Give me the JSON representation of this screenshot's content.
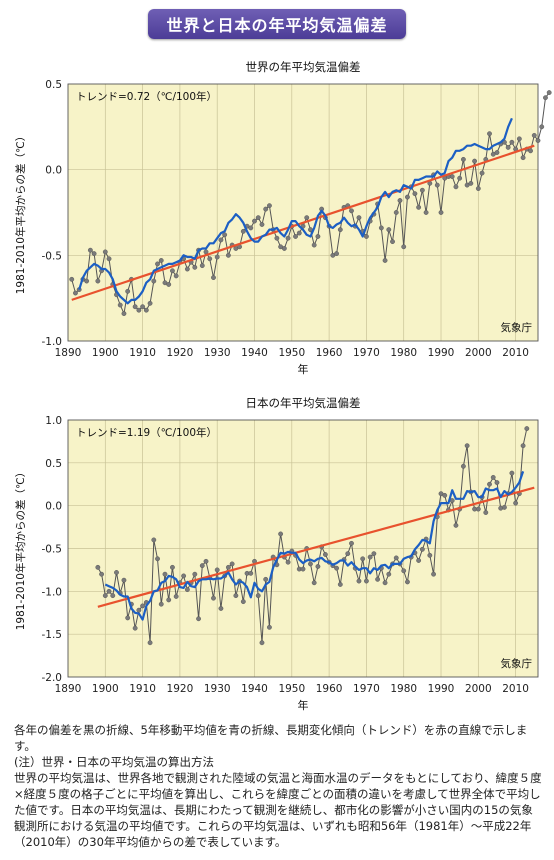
{
  "header": {
    "title": "世界と日本の年平均気温偏差"
  },
  "colors": {
    "plot_bg": "#f7f3c8",
    "raw": "#555555",
    "moving_avg": "#1c5fc4",
    "trend": "#e8522e"
  },
  "chart_data": [
    {
      "type": "line",
      "title": "世界の年平均気温偏差",
      "trend_label": "トレンド=0.72（℃/100年）",
      "source": "気象庁",
      "ylabel": "1981-2010年平均からの差（℃）",
      "xlabel": "年",
      "xlim": [
        1890,
        2016
      ],
      "ylim": [
        -1.0,
        0.5
      ],
      "xticks": [
        1890,
        1900,
        1910,
        1920,
        1930,
        1940,
        1950,
        1960,
        1970,
        1980,
        1990,
        2000,
        2010
      ],
      "xtick_labels": [
        "1890",
        "1900",
        "1910",
        "1920",
        "1930",
        "1940",
        "1950",
        "1960",
        "1970",
        "1980",
        "1990",
        "2000",
        "2010"
      ],
      "yticks": [
        -1.0,
        -0.5,
        0.0,
        0.5
      ],
      "ytick_labels": [
        "-1.0",
        "-0.5",
        "0.0",
        "0.5"
      ],
      "grid": true,
      "series": [
        {
          "key": "raw",
          "start_year": 1891,
          "values": [
            -0.64,
            -0.72,
            -0.7,
            -0.64,
            -0.65,
            -0.47,
            -0.49,
            -0.65,
            -0.59,
            -0.48,
            -0.52,
            -0.67,
            -0.73,
            -0.79,
            -0.84,
            -0.71,
            -0.64,
            -0.8,
            -0.82,
            -0.8,
            -0.82,
            -0.78,
            -0.65,
            -0.55,
            -0.53,
            -0.66,
            -0.67,
            -0.59,
            -0.62,
            -0.54,
            -0.52,
            -0.58,
            -0.54,
            -0.57,
            -0.47,
            -0.56,
            -0.48,
            -0.52,
            -0.63,
            -0.51,
            -0.41,
            -0.38,
            -0.5,
            -0.44,
            -0.46,
            -0.45,
            -0.36,
            -0.33,
            -0.34,
            -0.3,
            -0.28,
            -0.32,
            -0.23,
            -0.21,
            -0.35,
            -0.4,
            -0.45,
            -0.46,
            -0.4,
            -0.33,
            -0.39,
            -0.37,
            -0.33,
            -0.28,
            -0.35,
            -0.44,
            -0.39,
            -0.23,
            -0.28,
            -0.33,
            -0.5,
            -0.49,
            -0.35,
            -0.22,
            -0.21,
            -0.24,
            -0.33,
            -0.28,
            -0.36,
            -0.39,
            -0.3,
            -0.26,
            -0.2,
            -0.34,
            -0.53,
            -0.35,
            -0.42,
            -0.25,
            -0.18,
            -0.45,
            -0.16,
            -0.1,
            -0.14,
            -0.22,
            -0.12,
            -0.25,
            -0.08,
            -0.03,
            -0.09,
            -0.25,
            -0.05,
            -0.04,
            -0.04,
            -0.1,
            -0.05,
            0.06,
            -0.09,
            -0.08,
            0.05,
            -0.11,
            -0.02,
            0.06,
            0.21,
            0.09,
            0.1,
            0.15,
            0.16,
            0.13,
            0.16,
            0.12,
            0.18,
            0.07,
            0.12,
            0.11,
            0.2,
            0.17,
            0.25,
            0.42,
            0.45
          ]
        },
        {
          "key": "moving_avg",
          "start_year": 1893,
          "values": [
            -0.7,
            -0.63,
            -0.59,
            -0.57,
            -0.55,
            -0.56,
            -0.58,
            -0.58,
            -0.6,
            -0.64,
            -0.71,
            -0.74,
            -0.76,
            -0.78,
            -0.76,
            -0.76,
            -0.74,
            -0.71,
            -0.66,
            -0.64,
            -0.59,
            -0.58,
            -0.57,
            -0.56,
            -0.55,
            -0.55,
            -0.54,
            -0.53,
            -0.5,
            -0.51,
            -0.51,
            -0.52,
            -0.47,
            -0.46,
            -0.46,
            -0.43,
            -0.43,
            -0.4,
            -0.37,
            -0.36,
            -0.31,
            -0.29,
            -0.26,
            -0.28,
            -0.31,
            -0.36,
            -0.4,
            -0.42,
            -0.42,
            -0.39,
            -0.38,
            -0.35,
            -0.35,
            -0.34,
            -0.37,
            -0.39,
            -0.35,
            -0.3,
            -0.3,
            -0.33,
            -0.35,
            -0.38,
            -0.39,
            -0.34,
            -0.27,
            -0.24,
            -0.27,
            -0.33,
            -0.34,
            -0.32,
            -0.31,
            -0.28,
            -0.31,
            -0.33,
            -0.32,
            -0.35,
            -0.39,
            -0.33,
            -0.28,
            -0.25,
            -0.22,
            -0.16,
            -0.13,
            -0.16,
            -0.13,
            -0.12,
            -0.13,
            -0.09,
            -0.1,
            -0.11,
            -0.06,
            -0.06,
            -0.05,
            -0.04,
            -0.04,
            -0.04,
            -0.01,
            -0.03,
            -0.02,
            0.05,
            0.07,
            0.11,
            0.11,
            0.12,
            0.14,
            0.14,
            0.15,
            0.14,
            0.13,
            0.12,
            0.12,
            0.14,
            0.15,
            0.16,
            0.18,
            0.25,
            0.3
          ]
        },
        {
          "key": "trend",
          "start_year": 1891,
          "values": [
            -0.76
          ],
          "end_year": 2015,
          "end_value": 0.14
        }
      ]
    },
    {
      "type": "line",
      "title": "日本の年平均気温偏差",
      "trend_label": "トレンド=1.19（℃/100年）",
      "source": "気象庁",
      "ylabel": "1981-2010年平均からの差（℃）",
      "xlabel": "年",
      "xlim": [
        1890,
        2016
      ],
      "ylim": [
        -2.0,
        1.0
      ],
      "xticks": [
        1890,
        1900,
        1910,
        1920,
        1930,
        1940,
        1950,
        1960,
        1970,
        1980,
        1990,
        2000,
        2010
      ],
      "xtick_labels": [
        "1890",
        "1900",
        "1910",
        "1920",
        "1930",
        "1940",
        "1950",
        "1960",
        "1970",
        "1980",
        "1990",
        "2000",
        "2010"
      ],
      "yticks": [
        -2.0,
        -1.5,
        -1.0,
        -0.5,
        0.0,
        0.5,
        1.0
      ],
      "ytick_labels": [
        "-2.0",
        "-1.5",
        "-1.0",
        "-0.5",
        "0.0",
        "0.5",
        "1.0"
      ],
      "grid": true,
      "series": [
        {
          "key": "raw",
          "start_year": 1898,
          "values": [
            -0.72,
            -0.8,
            -1.05,
            -1.0,
            -1.05,
            -0.78,
            -1.02,
            -0.87,
            -1.31,
            -1.15,
            -1.43,
            -1.22,
            -1.17,
            -1.13,
            -1.6,
            -0.4,
            -0.62,
            -1.15,
            -0.8,
            -1.1,
            -0.72,
            -1.06,
            -0.9,
            -0.82,
            -0.98,
            -0.9,
            -0.8,
            -1.32,
            -0.7,
            -0.65,
            -0.84,
            -1.08,
            -0.75,
            -1.2,
            -0.82,
            -0.72,
            -0.68,
            -1.05,
            -0.88,
            -1.12,
            -0.79,
            -0.79,
            -0.65,
            -1.05,
            -1.6,
            -0.86,
            -1.42,
            -0.6,
            -0.69,
            -0.33,
            -0.6,
            -0.66,
            -0.53,
            -0.58,
            -0.74,
            -0.74,
            -0.5,
            -0.68,
            -0.9,
            -0.71,
            -0.48,
            -0.57,
            -0.66,
            -0.7,
            -0.73,
            -0.92,
            -0.63,
            -0.56,
            -0.44,
            -0.73,
            -0.88,
            -0.62,
            -0.88,
            -0.6,
            -0.56,
            -0.86,
            -0.73,
            -0.9,
            -0.8,
            -0.68,
            -0.61,
            -0.68,
            -0.76,
            -0.89,
            -0.6,
            -0.55,
            -0.64,
            -0.51,
            -0.39,
            -0.58,
            -0.8,
            -0.13,
            0.14,
            0.12,
            -0.05,
            0.06,
            -0.23,
            -0.04,
            0.46,
            0.7,
            0.16,
            -0.04,
            -0.04,
            0.1,
            -0.08,
            0.25,
            0.33,
            0.27,
            -0.03,
            -0.02,
            0.14,
            0.38,
            0.03,
            0.14,
            0.7,
            0.9
          ]
        },
        {
          "key": "moving_avg",
          "start_year": 1900,
          "values": [
            -0.92,
            -0.94,
            -0.96,
            -0.99,
            -1.04,
            -1.06,
            -1.06,
            -1.2,
            -1.25,
            -1.26,
            -1.33,
            -1.17,
            -1.11,
            -1.0,
            -0.99,
            -0.9,
            -0.88,
            -0.82,
            -0.83,
            -0.86,
            -0.95,
            -0.96,
            -0.89,
            -0.94,
            -0.95,
            -0.88,
            -0.86,
            -0.86,
            -0.85,
            -0.86,
            -0.85,
            -0.85,
            -0.82,
            -0.78,
            -0.86,
            -0.92,
            -0.88,
            -0.9,
            -0.95,
            -1.07,
            -0.9,
            -0.97,
            -1.0,
            -0.92,
            -0.89,
            -0.72,
            -0.63,
            -0.55,
            -0.56,
            -0.54,
            -0.55,
            -0.55,
            -0.63,
            -0.67,
            -0.64,
            -0.63,
            -0.65,
            -0.62,
            -0.61,
            -0.65,
            -0.66,
            -0.69,
            -0.67,
            -0.64,
            -0.64,
            -0.7,
            -0.66,
            -0.71,
            -0.75,
            -0.73,
            -0.73,
            -0.79,
            -0.73,
            -0.75,
            -0.7,
            -0.69,
            -0.73,
            -0.68,
            -0.68,
            -0.68,
            -0.62,
            -0.6,
            -0.59,
            -0.51,
            -0.46,
            -0.4,
            -0.41,
            -0.44,
            -0.18,
            -0.05,
            0.03,
            0.03,
            0.03,
            0.18,
            0.08,
            0.08,
            0.08,
            0.17,
            0.16,
            0.17,
            0.1,
            0.1,
            0.2,
            0.18,
            0.18,
            0.2,
            0.1,
            0.17,
            0.13,
            0.16,
            0.21,
            0.27,
            0.4
          ]
        },
        {
          "key": "trend",
          "start_year": 1898,
          "values": [
            -1.18
          ],
          "end_year": 2015,
          "end_value": 0.21
        }
      ]
    }
  ],
  "notes": {
    "line1": "各年の偏差を黒の折線、5年移動平均値を青の折線、長期変化傾向（トレンド）を赤の直線で示します。",
    "line2": "(注）世界・日本の平均気温の算出方法",
    "line3": "世界の平均気温は、世界各地で観測された陸域の気温と海面水温のデータをもとにしており、緯度５度×経度５度の格子ごとに平均値を算出し、これらを緯度ごとの面積の違いを考慮して世界全体で平均した値です。日本の平均気温は、長期にわたって観測を継続し、都市化の影響が小さい国内の15の気象観測所における気温の平均値です。これらの平均気温は、いずれも昭和56年（1981年）～平成22年（2010年）の30年平均値からの差で表しています。"
  }
}
